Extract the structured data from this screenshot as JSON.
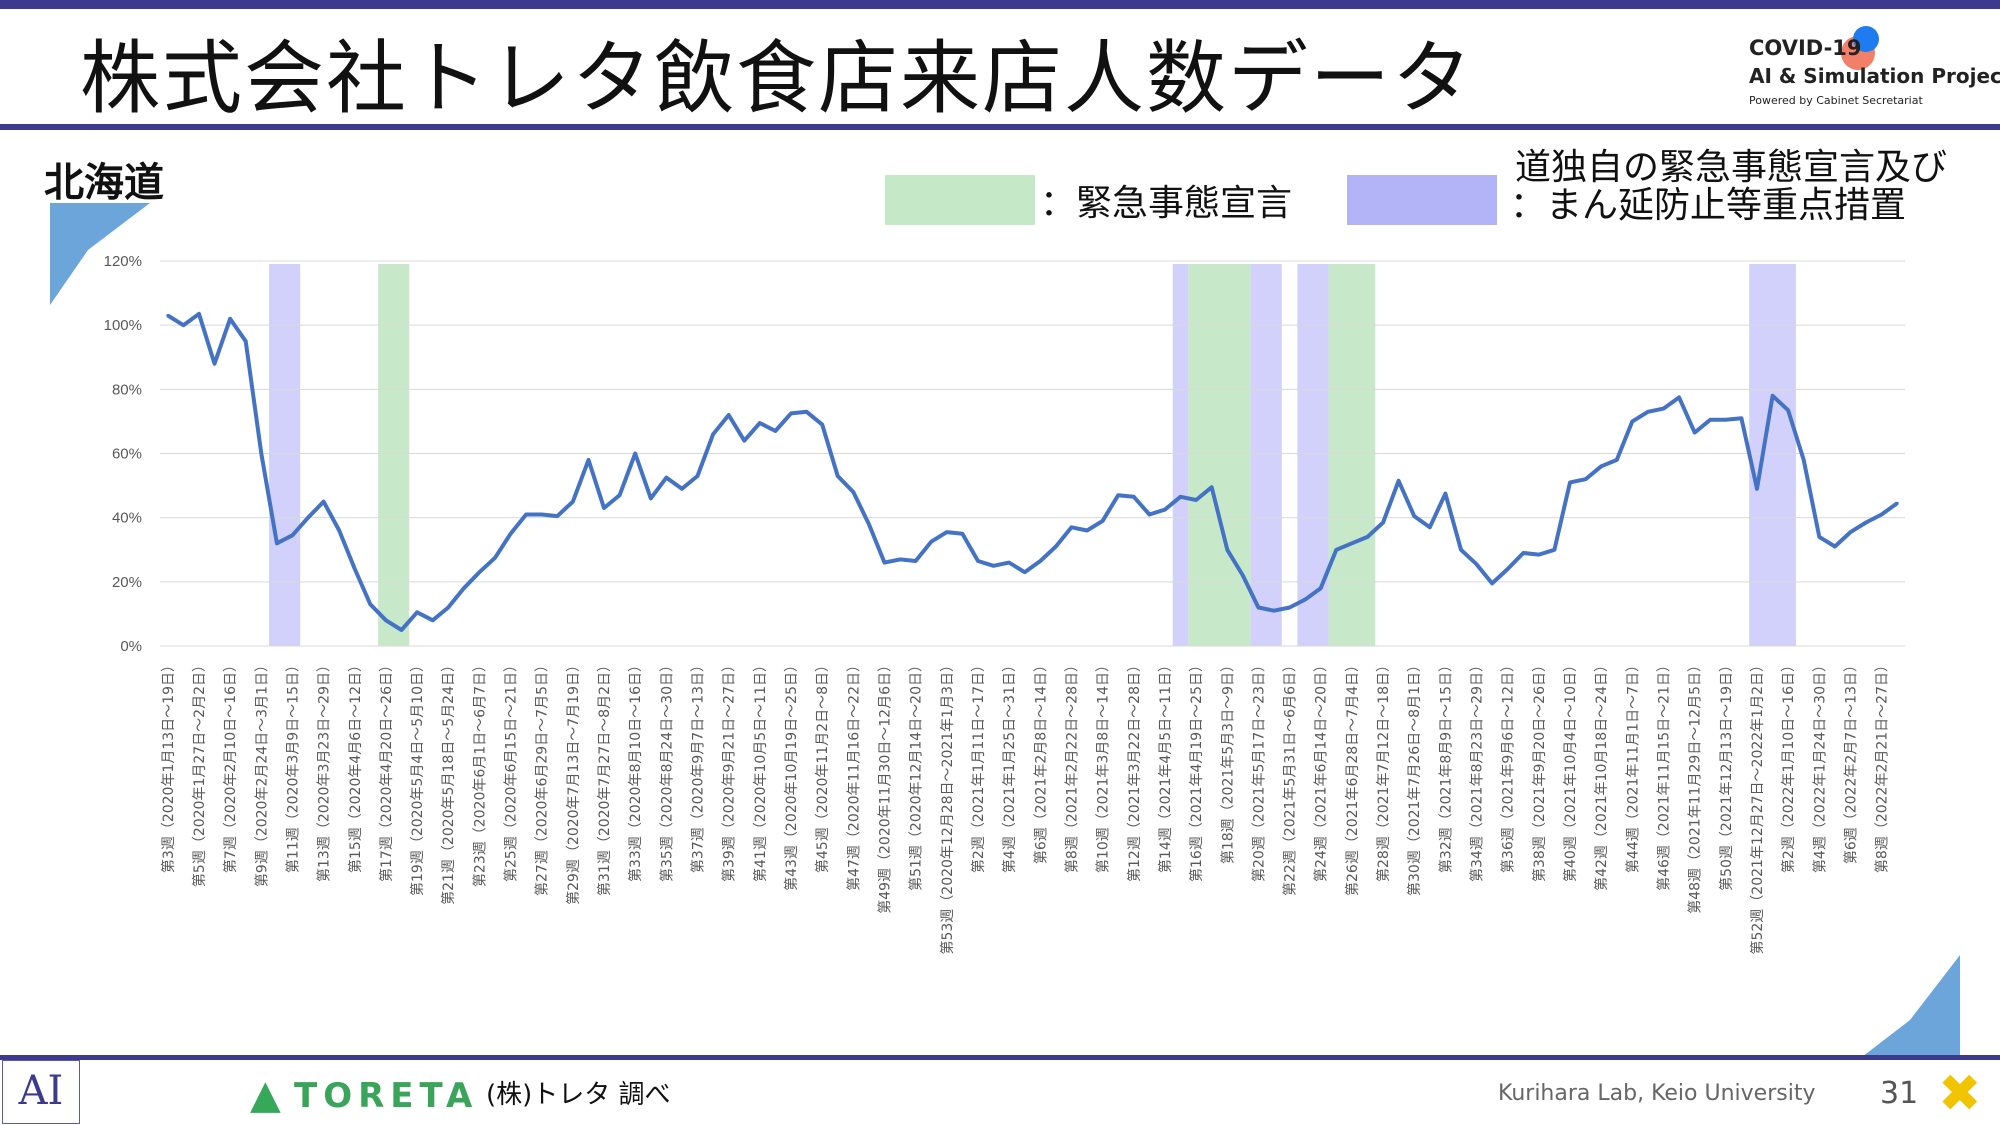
{
  "slide": {
    "title": "株式会社トレタ飲食店来店人数データ",
    "region": "北海道",
    "source": "(株)トレタ 調べ",
    "credit": "Kurihara Lab, Keio University",
    "page_number": "31",
    "logo": {
      "line1": "COVID-19",
      "line2": "AI & Simulation Project",
      "line3": "Powered by Cabinet Secretariat"
    },
    "toreta_logo": "TORETA",
    "ai_logo": "AI"
  },
  "legend": {
    "emergency_label": "：緊急事態宣言",
    "emergency_color": "#c5e8c6",
    "priority_label_line1": "道独自の緊急事態宣言及び",
    "priority_label_line2": "：まん延防止等重点措置",
    "priority_color": "#b3b3f8"
  },
  "chart_data": {
    "type": "line",
    "title": "",
    "xlabel": "",
    "ylabel": "",
    "ylim": [
      0,
      120
    ],
    "yticks": [
      "0%",
      "20%",
      "40%",
      "60%",
      "80%",
      "100%",
      "120%"
    ],
    "line_color": "#4472c4",
    "grid": true,
    "x_labels": [
      "第3週（2020年1月13日～19日）",
      "第5週（2020年1月27日～2月2日）",
      "第7週（2020年2月10日～16日）",
      "第9週（2020年2月24日～3月1日）",
      "第11週（2020年3月9日～15日）",
      "第13週（2020年3月23日～29日）",
      "第15週（2020年4月6日～12日）",
      "第17週（2020年4月20日～26日）",
      "第19週（2020年5月4日～5月10日）",
      "第21週（2020年5月18日～5月24日）",
      "第23週（2020年6月1日～6月7日）",
      "第25週（2020年6月15日～21日）",
      "第27週（2020年6月29日～7月5日）",
      "第29週（2020年7月13日～7月19日）",
      "第31週（2020年7月27日～8月2日）",
      "第33週（2020年8月10日～16日）",
      "第35週（2020年8月24日～30日）",
      "第37週（2020年9月7日～13日）",
      "第39週（2020年9月21日～27日）",
      "第41週（2020年10月5日～11日）",
      "第43週（2020年10月19日～25日）",
      "第45週（2020年11月2日～8日）",
      "第47週（2020年11月16日～22日）",
      "第49週（2020年11月30日～12月6日）",
      "第51週（2020年12月14日～20日）",
      "第53週（2020年12月28日～2021年1月3日）",
      "第2週（2021年1月11日～17日）",
      "第4週（2021年1月25日～31日）",
      "第6週（2021年2月8日～14日）",
      "第8週（2021年2月22日～28日）",
      "第10週（2021年3月8日～14日）",
      "第12週（2021年3月22日～28日）",
      "第14週（2021年4月5日～11日）",
      "第16週（2021年4月19日～25日）",
      "第18週（2021年5月3日～9日）",
      "第20週（2021年5月17日～23日）",
      "第22週（2021年5月31日～6月6日）",
      "第24週（2021年6月14日～20日）",
      "第26週（2021年6月28日～7月4日）",
      "第28週（2021年7月12日～18日）",
      "第30週（2021年7月26日～8月1日）",
      "第32週（2021年8月9日～15日）",
      "第34週（2021年8月23日～29日）",
      "第36週（2021年9月6日～12日）",
      "第38週（2021年9月20日～26日）",
      "第40週（2021年10月4日～10日）",
      "第42週（2021年10月18日～24日）",
      "第44週（2021年11月1日～7日）",
      "第46週（2021年11月15日～21日）",
      "第48週（2021年11月29日～12月5日）",
      "第50週（2021年12月13日～19日）",
      "第52週（2021年12月27日～2022年1月2日）",
      "第2週（2022年1月10日～16日）",
      "第4週（2022年1月24日～30日）",
      "第6週（2022年2月7日～13日）",
      "第8週（2022年2月21日～27日）"
    ],
    "values": [
      103,
      100,
      103.5,
      88,
      102,
      95,
      60,
      32,
      34.5,
      40,
      45,
      36,
      24,
      13,
      8,
      5,
      10.5,
      8,
      12,
      18,
      23,
      27.5,
      35,
      41,
      41,
      40.5,
      45,
      58,
      43,
      47,
      60,
      46,
      52.5,
      49,
      53,
      66,
      72,
      64,
      69.5,
      67,
      72.5,
      73,
      69,
      53,
      48,
      38,
      26,
      27,
      26.5,
      32.5,
      35.5,
      35,
      26.5,
      25,
      26,
      23,
      26.5,
      31,
      37,
      36,
      39,
      47,
      46.5,
      41,
      42.5,
      46.5,
      45.5,
      49.5,
      30,
      22,
      12,
      11,
      12,
      14.5,
      18,
      30,
      32,
      34,
      38.5,
      51.5,
      40.5,
      37,
      47.5,
      30,
      25.5,
      19.5,
      24,
      29,
      28.5,
      30,
      51,
      52,
      56,
      58,
      70,
      73,
      74,
      77.5,
      66.5,
      70.5,
      70.5,
      71,
      49,
      78,
      73.5,
      58,
      34,
      31,
      35.5,
      38.5,
      41,
      44.5
    ],
    "shaded_periods": [
      {
        "kind": "priority",
        "start_week_index": 7,
        "end_week_index": 9
      },
      {
        "kind": "emergency",
        "start_week_index": 14,
        "end_week_index": 16
      },
      {
        "kind": "priority",
        "start_week_index": 65,
        "end_week_index": 66
      },
      {
        "kind": "emergency",
        "start_week_index": 66,
        "end_week_index": 70
      },
      {
        "kind": "priority",
        "start_week_index": 70,
        "end_week_index": 72
      },
      {
        "kind": "priority",
        "start_week_index": 73,
        "end_week_index": 75
      },
      {
        "kind": "emergency",
        "start_week_index": 75,
        "end_week_index": 78
      },
      {
        "kind": "priority",
        "start_week_index": 102,
        "end_week_index": 105
      }
    ]
  }
}
